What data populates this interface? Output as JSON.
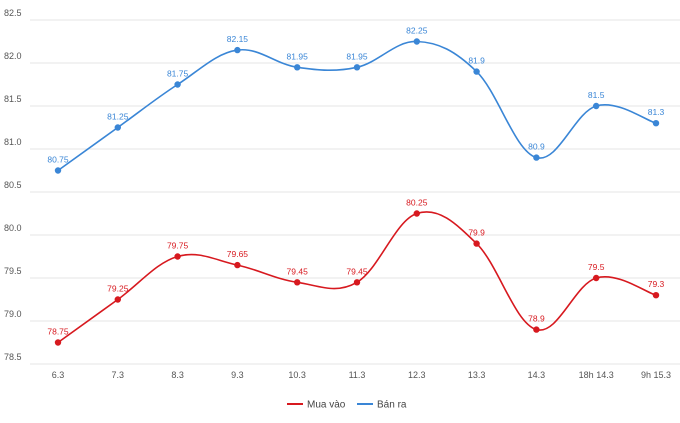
{
  "chart_data": {
    "type": "line",
    "categories": [
      "6.3",
      "7.3",
      "8.3",
      "9.3",
      "10.3",
      "11.3",
      "12.3",
      "13.3",
      "14.3",
      "18h 14.3",
      "9h 15.3"
    ],
    "series": [
      {
        "name": "Mua vào",
        "color": "#d7191f",
        "values": [
          78.75,
          79.25,
          79.75,
          79.65,
          79.45,
          79.45,
          80.25,
          79.9,
          78.9,
          79.5,
          79.3
        ],
        "labels": [
          "78.75",
          "79.25",
          "79.75",
          "79.65",
          "79.45",
          "79.45",
          "80.25",
          "79.9",
          "78.9",
          "79.5",
          "79.3"
        ]
      },
      {
        "name": "Bán ra",
        "color": "#3a86d6",
        "values": [
          80.75,
          81.25,
          81.75,
          82.15,
          81.95,
          81.95,
          82.25,
          81.9,
          80.9,
          81.5,
          81.3
        ],
        "labels": [
          "80.75",
          "81.25",
          "81.75",
          "82.15",
          "81.95",
          "81.95",
          "82.25",
          "81.9",
          "80.9",
          "81.5",
          "81.3"
        ]
      }
    ],
    "yticks": [
      "78.5",
      "79.0",
      "79.5",
      "80.0",
      "80.5",
      "81.0",
      "81.5",
      "82.0",
      "82.5"
    ],
    "ylim": [
      78.5,
      82.5
    ],
    "grid": true,
    "legend": "bottom-center"
  }
}
